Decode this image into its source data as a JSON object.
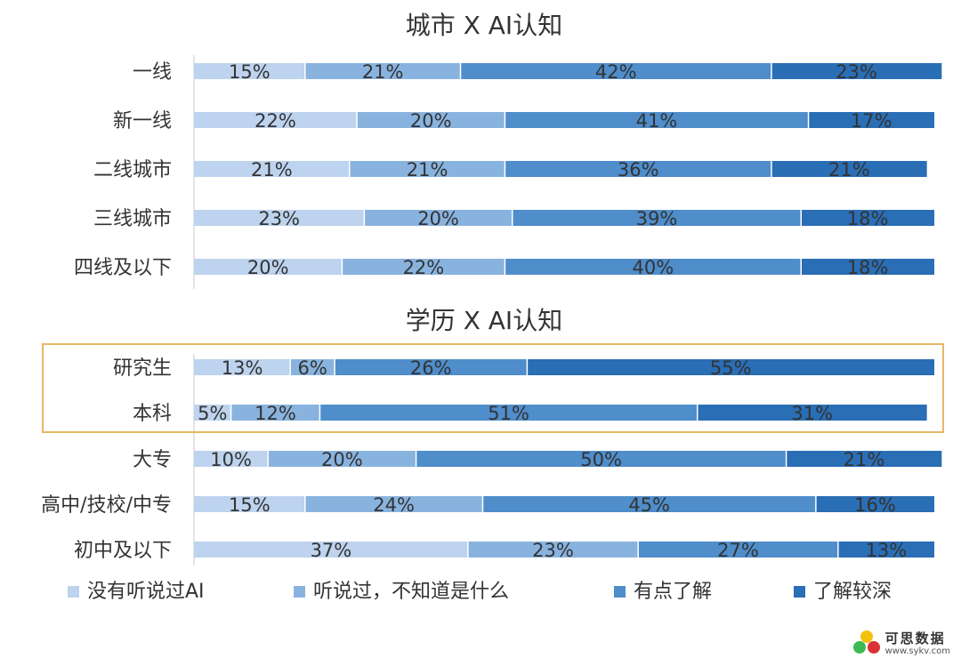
{
  "chart_data": [
    {
      "type": "bar",
      "orientation": "horizontal",
      "stacked": true,
      "percent": true,
      "title": "城市 X AI认知",
      "categories": [
        "一线",
        "新一线",
        "二线城市",
        "三线城市",
        "四线及以下"
      ],
      "series": [
        {
          "name": "没有听说过AI",
          "values": [
            15,
            22,
            21,
            23,
            20
          ]
        },
        {
          "name": "听说过，不知道是什么",
          "values": [
            21,
            20,
            21,
            20,
            22
          ]
        },
        {
          "name": "有点了解",
          "values": [
            42,
            41,
            36,
            39,
            40
          ]
        },
        {
          "name": "了解较深",
          "values": [
            23,
            17,
            21,
            18,
            18
          ]
        }
      ],
      "data_labels": true,
      "grid": false
    },
    {
      "type": "bar",
      "orientation": "horizontal",
      "stacked": true,
      "percent": true,
      "title": "学历 X AI认知",
      "categories": [
        "研究生",
        "本科",
        "大专",
        "高中/技校/中专",
        "初中及以下"
      ],
      "series": [
        {
          "name": "没有听说过AI",
          "values": [
            13,
            5,
            10,
            15,
            37
          ]
        },
        {
          "name": "听说过，不知道是什么",
          "values": [
            6,
            12,
            20,
            24,
            23
          ]
        },
        {
          "name": "有点了解",
          "values": [
            26,
            51,
            50,
            45,
            27
          ]
        },
        {
          "name": "了解较深",
          "values": [
            55,
            31,
            21,
            16,
            13
          ]
        }
      ],
      "data_labels": true,
      "grid": false,
      "highlighted_categories": [
        "研究生",
        "本科"
      ]
    }
  ],
  "colors": {
    "series": [
      "#bdd3ee",
      "#89b3df",
      "#4f8dcb",
      "#2a6eb5"
    ],
    "highlight_box": "#e8b765",
    "label_text": "#333333"
  },
  "legend": {
    "placement": "bottom",
    "items": [
      "没有听说过AI",
      "听说过，不知道是什么",
      "有点了解",
      "了解较深"
    ]
  },
  "watermark": {
    "title": "可思数据",
    "url": "www.sykv.com"
  }
}
